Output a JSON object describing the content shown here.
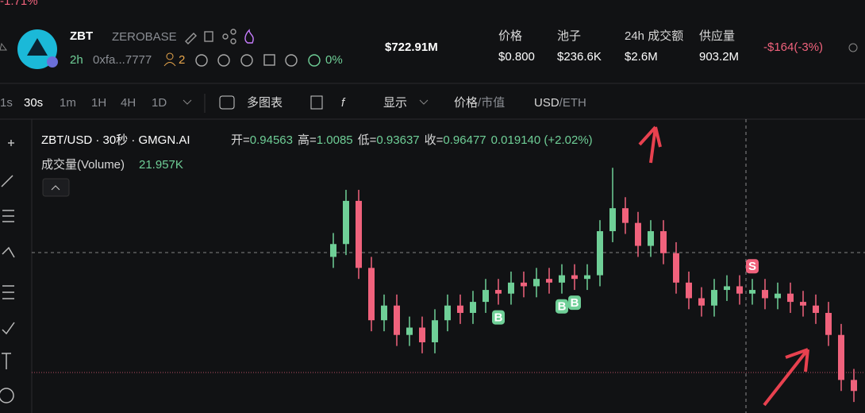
{
  "header": {
    "top_partial": "-1.71%",
    "symbol": "ZBT",
    "name": "ZEROBASE",
    "age": "2h",
    "address": "0xfa...7777",
    "holders": "2",
    "percent": "0%",
    "market_cap": "$722.91M",
    "stats": [
      {
        "label": "价格",
        "value": "$0.800"
      },
      {
        "label": "池子",
        "value": "$236.6K"
      },
      {
        "label": "24h 成交额",
        "value": "$2.6M"
      },
      {
        "label": "供应量",
        "value": "903.2M"
      }
    ],
    "change": "-$164(-3%)"
  },
  "toolbar": {
    "intervals": [
      "1s",
      "30s",
      "1m",
      "1H",
      "4H",
      "1D"
    ],
    "multi_chart": "多图表",
    "display": "显示",
    "price": "价格",
    "market_cap": "市值",
    "separator": "/",
    "usd": "USD",
    "eth": "ETH"
  },
  "legend": {
    "title": "ZBT/USD · 30秒 · GMGN.AI",
    "ohlc": [
      {
        "label": "开=",
        "value": "0.94563"
      },
      {
        "label": "高=",
        "value": "1.0085"
      },
      {
        "label": "低=",
        "value": "0.93637"
      },
      {
        "label": "收=",
        "value": "0.96477"
      }
    ],
    "change": "0.019140 (+2.02%)",
    "volume_label": "成交量(Volume)",
    "volume_value": "21.957K"
  },
  "chart_data": {
    "type": "candlestick",
    "up_color": "#6fcf97",
    "down_color": "#f0627c",
    "ylim": [
      0.7,
      1.02
    ],
    "open": [
      0.87,
      0.884,
      0.931,
      0.858,
      0.801,
      0.817,
      0.785,
      0.793,
      0.777,
      0.801,
      0.817,
      0.809,
      0.821,
      0.834,
      0.83,
      0.842,
      0.838,
      0.846,
      0.842,
      0.85,
      0.846,
      0.85,
      0.898,
      0.923,
      0.907,
      0.882,
      0.898,
      0.874,
      0.842,
      0.825,
      0.817,
      0.834,
      0.838,
      0.83,
      0.834,
      0.825,
      0.83,
      0.821,
      0.817,
      0.809,
      0.785,
      0.736
    ],
    "high": [
      0.896,
      0.943,
      0.943,
      0.87,
      0.829,
      0.829,
      0.805,
      0.805,
      0.813,
      0.829,
      0.829,
      0.833,
      0.846,
      0.846,
      0.854,
      0.854,
      0.858,
      0.858,
      0.862,
      0.862,
      0.862,
      0.91,
      0.967,
      0.935,
      0.919,
      0.91,
      0.91,
      0.886,
      0.854,
      0.837,
      0.846,
      0.85,
      0.85,
      0.846,
      0.846,
      0.842,
      0.842,
      0.833,
      0.829,
      0.821,
      0.797,
      0.748
    ],
    "low": [
      0.858,
      0.872,
      0.846,
      0.789,
      0.789,
      0.773,
      0.773,
      0.765,
      0.765,
      0.789,
      0.797,
      0.797,
      0.809,
      0.818,
      0.818,
      0.826,
      0.826,
      0.83,
      0.83,
      0.834,
      0.834,
      0.838,
      0.886,
      0.895,
      0.87,
      0.87,
      0.862,
      0.83,
      0.813,
      0.805,
      0.805,
      0.822,
      0.818,
      0.818,
      0.813,
      0.813,
      0.809,
      0.805,
      0.797,
      0.773,
      0.724,
      0.712
    ],
    "close": [
      0.884,
      0.931,
      0.858,
      0.801,
      0.817,
      0.785,
      0.793,
      0.777,
      0.801,
      0.817,
      0.809,
      0.821,
      0.834,
      0.83,
      0.842,
      0.838,
      0.846,
      0.842,
      0.85,
      0.846,
      0.85,
      0.898,
      0.923,
      0.907,
      0.882,
      0.898,
      0.874,
      0.842,
      0.825,
      0.817,
      0.834,
      0.838,
      0.83,
      0.834,
      0.825,
      0.83,
      0.821,
      0.817,
      0.809,
      0.785,
      0.736,
      0.724
    ],
    "markers": [
      {
        "label": "B",
        "candle": 13
      },
      {
        "label": "B",
        "candle": 18
      },
      {
        "label": "B",
        "candle": 19
      },
      {
        "label": "S",
        "candle": 33
      }
    ]
  }
}
